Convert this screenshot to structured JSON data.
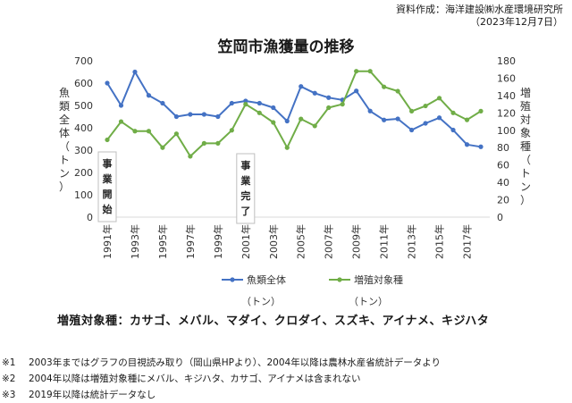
{
  "source": {
    "line1": "資料作成：海洋建設㈱水産環境研究所",
    "line2": "（2023年12月7日）"
  },
  "chart_data": {
    "type": "line",
    "title": "笠岡市漁獲量の推移",
    "x": [
      1991,
      1992,
      1993,
      1994,
      1995,
      1996,
      1997,
      1998,
      1999,
      2000,
      2001,
      2002,
      2003,
      2004,
      2005,
      2006,
      2007,
      2008,
      2009,
      2010,
      2011,
      2012,
      2013,
      2014,
      2015,
      2016,
      2017,
      2018
    ],
    "xtick_labels": [
      "1991年",
      "1993年",
      "1995年",
      "1997年",
      "1999年",
      "2001年",
      "2003年",
      "2005年",
      "2007年",
      "2009年",
      "2011年",
      "2013年",
      "2015年",
      "2017年"
    ],
    "ylabel_left": "魚類全体（トン）",
    "ylabel_right": "増殖対象種（トン）",
    "ylim_left": [
      0,
      700
    ],
    "yticks_left": [
      0,
      100,
      200,
      300,
      400,
      500,
      600,
      700
    ],
    "ylim_right": [
      0,
      180
    ],
    "yticks_right": [
      0,
      20,
      40,
      60,
      80,
      100,
      120,
      140,
      160,
      180
    ],
    "series": [
      {
        "name": "魚類全体",
        "axis": "left",
        "color": "#4472c4",
        "values": [
          600,
          500,
          650,
          545,
          510,
          450,
          460,
          460,
          450,
          510,
          520,
          510,
          490,
          430,
          585,
          555,
          535,
          525,
          565,
          475,
          435,
          440,
          390,
          420,
          445,
          390,
          325,
          315
        ]
      },
      {
        "name": "増殖対象種",
        "axis": "right",
        "color": "#70ad47",
        "values": [
          89,
          110,
          99,
          99,
          80,
          96,
          70,
          85,
          85,
          100,
          130,
          120,
          109,
          80,
          113,
          105,
          126,
          130,
          168,
          168,
          150,
          145,
          122,
          128,
          137,
          120,
          112,
          122
        ]
      }
    ],
    "legend": [
      {
        "label": "魚類全体",
        "unit": "（トン）",
        "color": "#4472c4"
      },
      {
        "label": "増殖対象種",
        "unit": "（トン）",
        "color": "#70ad47"
      }
    ],
    "annotations": [
      {
        "x": 1991,
        "text": "事業開始"
      },
      {
        "x": 2001,
        "text": "事業完了"
      }
    ]
  },
  "species_text": "増殖対象種：カサゴ、メバル、マダイ、クロダイ、スズキ、アイナメ、キジハタ",
  "notes": [
    {
      "mark": "※1",
      "text": "2003年まではグラフの目視読み取り（岡山県HPより）、2004年以降は農林水産省統計データより"
    },
    {
      "mark": "※2",
      "text": "2004年以降は増殖対象種にメバル、キジハタ、カサゴ、アイナメは含まれない"
    },
    {
      "mark": "※3",
      "text": "2019年以降は統計データなし"
    }
  ]
}
